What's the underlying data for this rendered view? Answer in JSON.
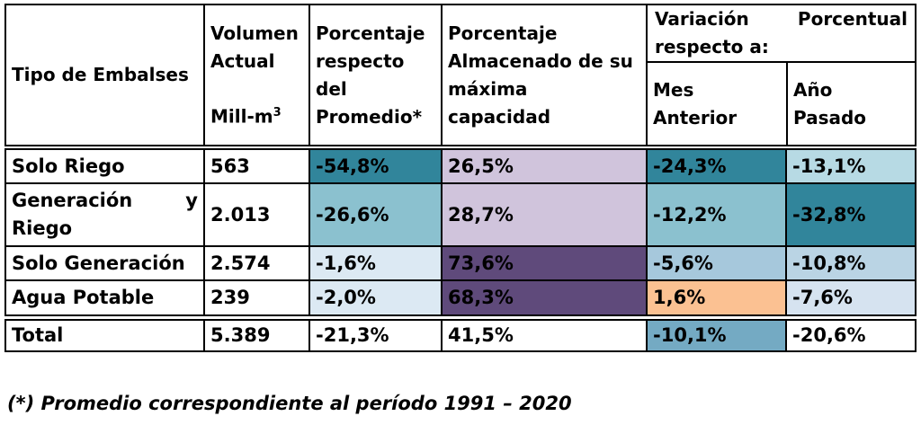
{
  "header": {
    "tipo": "Tipo de Embalses",
    "volumen_lines": [
      "Volumen",
      "Actual"
    ],
    "volumen_unit": "Mill-m",
    "volumen_unit_sup": "3",
    "promedio_lines": [
      "Porcentaje",
      "respecto",
      "del",
      "Promedio*"
    ],
    "capacidad_lines": [
      "Porcentaje",
      "Almacenado de su",
      "máxima",
      "capacidad"
    ],
    "variacion_line1_left": "Variación",
    "variacion_line1_right": "Porcentual",
    "variacion_line2": "respecto a:",
    "mes_lines": [
      "Mes",
      "Anterior"
    ],
    "anio_lines": [
      "Año",
      "Pasado"
    ]
  },
  "rows": [
    {
      "tipo": "Solo Riego",
      "volumen": "563",
      "pct_promedio": {
        "text": "-54,8%",
        "bg": "#31859B"
      },
      "pct_capacidad": {
        "text": "26,5%",
        "bg": "#D0C4DC"
      },
      "var_mes": {
        "text": "-24,3%",
        "bg": "#31859B"
      },
      "var_anio": {
        "text": "-13,1%",
        "bg": "#B7DAE4"
      }
    },
    {
      "tipo_line1_left": "Generación",
      "tipo_line1_right": "y",
      "tipo_line2": "Riego",
      "volumen": "2.013",
      "pct_promedio": {
        "text": "-26,6%",
        "bg": "#8BC1CF"
      },
      "pct_capacidad": {
        "text": "28,7%",
        "bg": "#D0C4DC"
      },
      "var_mes": {
        "text": "-12,2%",
        "bg": "#8BC1CF"
      },
      "var_anio": {
        "text": "-32,8%",
        "bg": "#31859B"
      }
    },
    {
      "tipo": "Solo Generación",
      "volumen": "2.574",
      "pct_promedio": {
        "text": "-1,6%",
        "bg": "#DCE9F3"
      },
      "pct_capacidad": {
        "text": "73,6%",
        "bg": "#5F4A7B"
      },
      "var_mes": {
        "text": "-5,6%",
        "bg": "#A6C8DC"
      },
      "var_anio": {
        "text": "-10,8%",
        "bg": "#BAD4E4"
      }
    },
    {
      "tipo": "Agua Potable",
      "volumen": "239",
      "pct_promedio": {
        "text": "-2,0%",
        "bg": "#DCE9F3"
      },
      "pct_capacidad": {
        "text": "68,3%",
        "bg": "#5F4A7B"
      },
      "var_mes": {
        "text": "1,6%",
        "bg": "#FBC192"
      },
      "var_anio": {
        "text": "-7,6%",
        "bg": "#D6E3F0"
      }
    }
  ],
  "total": {
    "label": "Total",
    "volumen": "5.389",
    "pct_promedio": {
      "text": "-21,3%",
      "bg": "#FFFFFF"
    },
    "pct_capacidad": {
      "text": "41,5%",
      "bg": "#FFFFFF"
    },
    "var_mes": {
      "text": "-10,1%",
      "bg": "#74AAC3"
    },
    "var_anio": {
      "text": "-20,6%",
      "bg": "#FFFFFF"
    }
  },
  "footnote": "(*) Promedio correspondiente al período 1991 – 2020"
}
